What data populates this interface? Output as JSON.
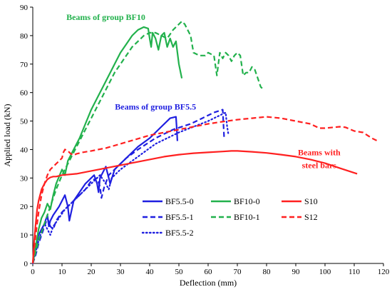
{
  "chart_data": {
    "type": "line",
    "xlabel": "Deflection (mm)",
    "ylabel": "Applied load (kN)",
    "xlim": [
      0,
      120
    ],
    "ylim": [
      0,
      90
    ],
    "xticks": [
      0,
      10,
      20,
      30,
      40,
      50,
      60,
      70,
      80,
      90,
      100,
      110,
      120
    ],
    "yticks": [
      0,
      10,
      20,
      30,
      40,
      50,
      60,
      70,
      80,
      90
    ],
    "grid": false,
    "legend_position": "lower-center",
    "annotations": [
      {
        "text": "Beams of group BF10",
        "color": "#22b14c",
        "at": [
          25,
          85.5
        ]
      },
      {
        "text": "Beams of group BF5.5",
        "color": "#1f1fe0",
        "at": [
          42,
          54
        ]
      },
      {
        "text": "Beams with",
        "color": "#ff2020",
        "at": [
          98,
          38
        ]
      },
      {
        "text": "steel bars",
        "color": "#ff2020",
        "at": [
          98,
          33.5
        ]
      }
    ],
    "series": [
      {
        "name": "BF5.5-0",
        "color": "#1f1fe0",
        "dash": "solid",
        "legend_row": 0,
        "legend_col": 0,
        "points": [
          [
            0,
            0
          ],
          [
            1,
            6
          ],
          [
            2,
            10
          ],
          [
            3,
            12
          ],
          [
            4,
            14
          ],
          [
            5,
            17
          ],
          [
            5.5,
            13
          ],
          [
            6,
            15
          ],
          [
            7,
            17
          ],
          [
            9,
            20
          ],
          [
            11,
            24
          ],
          [
            12,
            20
          ],
          [
            12.5,
            15
          ],
          [
            14,
            22
          ],
          [
            16,
            25
          ],
          [
            18,
            28
          ],
          [
            20,
            30
          ],
          [
            21,
            31
          ],
          [
            22,
            28
          ],
          [
            22.5,
            25
          ],
          [
            23,
            30
          ],
          [
            25,
            34
          ],
          [
            26,
            30
          ],
          [
            26.5,
            28
          ],
          [
            28,
            33
          ],
          [
            32,
            37
          ],
          [
            36,
            41
          ],
          [
            40,
            44
          ],
          [
            44,
            48
          ],
          [
            47,
            51
          ],
          [
            49,
            51.5
          ],
          [
            49.3,
            47
          ],
          [
            49.5,
            43
          ]
        ]
      },
      {
        "name": "BF5.5-1",
        "color": "#1f1fe0",
        "dash": "dashed",
        "legend_row": 1,
        "legend_col": 0,
        "points": [
          [
            0,
            0
          ],
          [
            1,
            3
          ],
          [
            2,
            7
          ],
          [
            3,
            10
          ],
          [
            4,
            13
          ],
          [
            5,
            16
          ],
          [
            6,
            13
          ],
          [
            7,
            12
          ],
          [
            8,
            15
          ],
          [
            10,
            18
          ],
          [
            12,
            20
          ],
          [
            14,
            22
          ],
          [
            16,
            24
          ],
          [
            18,
            26
          ],
          [
            20,
            29
          ],
          [
            22,
            30
          ],
          [
            23,
            27
          ],
          [
            23.5,
            23
          ],
          [
            24.5,
            27
          ],
          [
            26,
            31
          ],
          [
            28,
            33
          ],
          [
            32,
            37
          ],
          [
            36,
            40
          ],
          [
            42,
            44
          ],
          [
            48,
            47
          ],
          [
            54,
            49
          ],
          [
            58,
            51
          ],
          [
            62,
            53
          ],
          [
            65,
            54
          ],
          [
            65.3,
            48
          ],
          [
            65.5,
            44
          ]
        ]
      },
      {
        "name": "BF5.5-2",
        "color": "#1f1fe0",
        "dash": "dotted",
        "legend_row": 2,
        "legend_col": 0,
        "points": [
          [
            0,
            0
          ],
          [
            1,
            4
          ],
          [
            2,
            8
          ],
          [
            3,
            11
          ],
          [
            4,
            14
          ],
          [
            5,
            12
          ],
          [
            6,
            10
          ],
          [
            7,
            13
          ],
          [
            9,
            16
          ],
          [
            11,
            19
          ],
          [
            13,
            21
          ],
          [
            15,
            23
          ],
          [
            17,
            25
          ],
          [
            19,
            27
          ],
          [
            21,
            29
          ],
          [
            23,
            31
          ],
          [
            25,
            28
          ],
          [
            26,
            26
          ],
          [
            27,
            30
          ],
          [
            30,
            33
          ],
          [
            34,
            36
          ],
          [
            38,
            39
          ],
          [
            42,
            42
          ],
          [
            46,
            44
          ],
          [
            50,
            46
          ],
          [
            55,
            48
          ],
          [
            60,
            50
          ],
          [
            64,
            52
          ],
          [
            66,
            53
          ],
          [
            66.5,
            48
          ],
          [
            67,
            45
          ]
        ]
      },
      {
        "name": "BF10-0",
        "color": "#22b14c",
        "dash": "solid",
        "legend_row": 0,
        "legend_col": 1,
        "points": [
          [
            0,
            0
          ],
          [
            1,
            6
          ],
          [
            2,
            12
          ],
          [
            3,
            16
          ],
          [
            4,
            18
          ],
          [
            5,
            21
          ],
          [
            6,
            19
          ],
          [
            7,
            24
          ],
          [
            8,
            28
          ],
          [
            10,
            33
          ],
          [
            11,
            31
          ],
          [
            12,
            36
          ],
          [
            14,
            40
          ],
          [
            16,
            44
          ],
          [
            18,
            49
          ],
          [
            20,
            54
          ],
          [
            22,
            58
          ],
          [
            24,
            62
          ],
          [
            26,
            66
          ],
          [
            28,
            70
          ],
          [
            30,
            74
          ],
          [
            32,
            77
          ],
          [
            34,
            80
          ],
          [
            36,
            82
          ],
          [
            38,
            83
          ],
          [
            39.5,
            82.5
          ],
          [
            40,
            79
          ],
          [
            40.5,
            76
          ],
          [
            41,
            81
          ],
          [
            42,
            79
          ],
          [
            43,
            75
          ],
          [
            44,
            80
          ],
          [
            45,
            81
          ],
          [
            46,
            76
          ],
          [
            47,
            79
          ],
          [
            48,
            76
          ],
          [
            49,
            78
          ],
          [
            50,
            70
          ],
          [
            51,
            65
          ]
        ]
      },
      {
        "name": "BF10-1",
        "color": "#22b14c",
        "dash": "dashed",
        "legend_row": 1,
        "legend_col": 1,
        "points": [
          [
            0,
            0
          ],
          [
            2,
            8
          ],
          [
            4,
            14
          ],
          [
            6,
            20
          ],
          [
            8,
            26
          ],
          [
            10,
            31
          ],
          [
            12,
            35
          ],
          [
            14,
            39
          ],
          [
            16,
            43
          ],
          [
            18,
            47
          ],
          [
            20,
            51
          ],
          [
            22,
            55
          ],
          [
            24,
            59
          ],
          [
            26,
            63
          ],
          [
            28,
            67
          ],
          [
            30,
            70
          ],
          [
            32,
            73
          ],
          [
            34,
            76
          ],
          [
            36,
            78
          ],
          [
            38,
            80
          ],
          [
            40,
            81
          ],
          [
            42,
            81
          ],
          [
            44,
            80
          ],
          [
            46,
            79
          ],
          [
            48,
            82
          ],
          [
            50,
            84
          ],
          [
            51,
            85
          ],
          [
            52,
            84
          ],
          [
            54,
            80
          ],
          [
            55,
            74
          ],
          [
            57,
            73
          ],
          [
            59,
            73
          ],
          [
            60,
            74
          ],
          [
            62,
            73
          ],
          [
            63,
            66
          ],
          [
            64,
            74
          ],
          [
            65,
            72
          ],
          [
            66,
            74
          ],
          [
            67,
            73
          ],
          [
            68,
            71
          ],
          [
            69,
            73
          ],
          [
            70,
            74
          ],
          [
            71,
            73
          ],
          [
            72,
            66
          ],
          [
            73,
            67
          ],
          [
            74,
            67
          ],
          [
            75,
            69
          ],
          [
            76,
            68
          ],
          [
            77,
            65
          ],
          [
            78,
            62
          ],
          [
            79,
            61
          ]
        ]
      },
      {
        "name": "S10",
        "color": "#ff2020",
        "dash": "solid",
        "legend_row": 0,
        "legend_col": 2,
        "points": [
          [
            0,
            0
          ],
          [
            0.5,
            8
          ],
          [
            1,
            14
          ],
          [
            1.5,
            19
          ],
          [
            2,
            22
          ],
          [
            3,
            26
          ],
          [
            4,
            28
          ],
          [
            5,
            29.5
          ],
          [
            6,
            30.2
          ],
          [
            7,
            30.5
          ],
          [
            8,
            30.5
          ],
          [
            10,
            31
          ],
          [
            15,
            31.5
          ],
          [
            20,
            32.5
          ],
          [
            25,
            33.5
          ],
          [
            30,
            34.5
          ],
          [
            35,
            35.5
          ],
          [
            40,
            36.5
          ],
          [
            45,
            37.5
          ],
          [
            50,
            38.2
          ],
          [
            55,
            38.7
          ],
          [
            60,
            39
          ],
          [
            65,
            39.3
          ],
          [
            68,
            39.5
          ],
          [
            70,
            39.5
          ],
          [
            75,
            39.2
          ],
          [
            80,
            38.8
          ],
          [
            85,
            38.2
          ],
          [
            90,
            37.5
          ],
          [
            95,
            36.5
          ],
          [
            100,
            35.2
          ],
          [
            105,
            33.5
          ],
          [
            108,
            32.5
          ],
          [
            111,
            31.5
          ]
        ]
      },
      {
        "name": "S12",
        "color": "#ff2020",
        "dash": "dashed",
        "legend_row": 1,
        "legend_col": 2,
        "points": [
          [
            0,
            0
          ],
          [
            1,
            10
          ],
          [
            2,
            18
          ],
          [
            3,
            24
          ],
          [
            4,
            28
          ],
          [
            5,
            31
          ],
          [
            6,
            33
          ],
          [
            7,
            34
          ],
          [
            8,
            35
          ],
          [
            9,
            36
          ],
          [
            10,
            37
          ],
          [
            10.5,
            39
          ],
          [
            11,
            40
          ],
          [
            12,
            39.5
          ],
          [
            13,
            38.5
          ],
          [
            14,
            38
          ],
          [
            15,
            38.5
          ],
          [
            17,
            39
          ],
          [
            20,
            39.5
          ],
          [
            25,
            40.5
          ],
          [
            30,
            42
          ],
          [
            35,
            43.5
          ],
          [
            40,
            45
          ],
          [
            45,
            46
          ],
          [
            50,
            47
          ],
          [
            55,
            48
          ],
          [
            60,
            49
          ],
          [
            65,
            49.8
          ],
          [
            70,
            50.5
          ],
          [
            75,
            51
          ],
          [
            80,
            51.5
          ],
          [
            85,
            51
          ],
          [
            90,
            50
          ],
          [
            95,
            49
          ],
          [
            98,
            47.5
          ],
          [
            100,
            47.5
          ],
          [
            105,
            48
          ],
          [
            107,
            47.8
          ],
          [
            110,
            46.5
          ],
          [
            113,
            46
          ],
          [
            116,
            44
          ],
          [
            118,
            43
          ]
        ]
      }
    ]
  }
}
